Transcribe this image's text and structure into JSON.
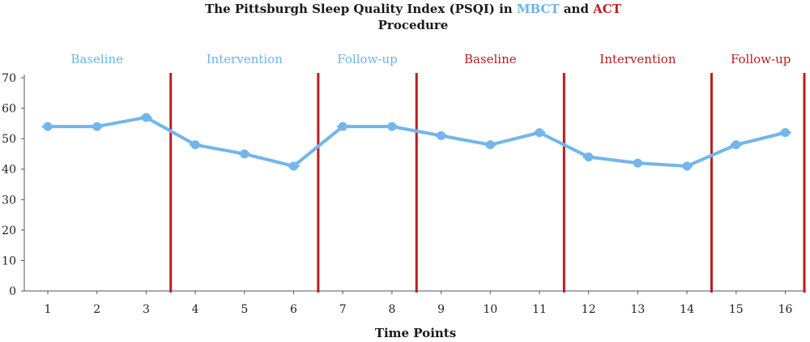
{
  "chart_data": {
    "type": "line",
    "title": {
      "prefix": "The Pittsburgh Sleep Quality Index (PSQI) in ",
      "group1": "MBCT",
      "middle": " and ",
      "group2": "ACT",
      "line2": "Procedure"
    },
    "xlabel": "Time Points",
    "ylabel": "",
    "ylim": [
      0,
      70
    ],
    "yticks": [
      "0",
      "10",
      "20",
      "30",
      "40",
      "50",
      "60",
      "70"
    ],
    "x": [
      "1",
      "2",
      "3",
      "4",
      "5",
      "6",
      "7",
      "8",
      "9",
      "10",
      "11",
      "12",
      "13",
      "14",
      "15",
      "16"
    ],
    "values": [
      54,
      54,
      57,
      48,
      45,
      41,
      54,
      54,
      51,
      48,
      52,
      44,
      42,
      41,
      48,
      52
    ],
    "phase_boundaries_after_point": [
      3.5,
      6.5,
      8.5,
      11.5,
      14.5,
      16.5
    ],
    "phases": [
      {
        "label": "Baseline",
        "group": "MBCT",
        "center_x": 2
      },
      {
        "label": "Intervention",
        "group": "MBCT",
        "center_x": 5
      },
      {
        "label": "Follow-up",
        "group": "MBCT",
        "center_x": 7.5
      },
      {
        "label": "Baseline",
        "group": "ACT",
        "center_x": 10
      },
      {
        "label": "Intervention",
        "group": "ACT",
        "center_x": 13
      },
      {
        "label": "Follow-up",
        "group": "ACT",
        "center_x": 15.5
      }
    ],
    "colors": {
      "line": "#72b6ec",
      "marker": "#72b6ec",
      "mbct_text": "#6ab4e8",
      "act_text": "#b81e22",
      "phase_divider": "#b81e22",
      "axis": "#555555"
    },
    "grid": false,
    "legend": "none"
  }
}
